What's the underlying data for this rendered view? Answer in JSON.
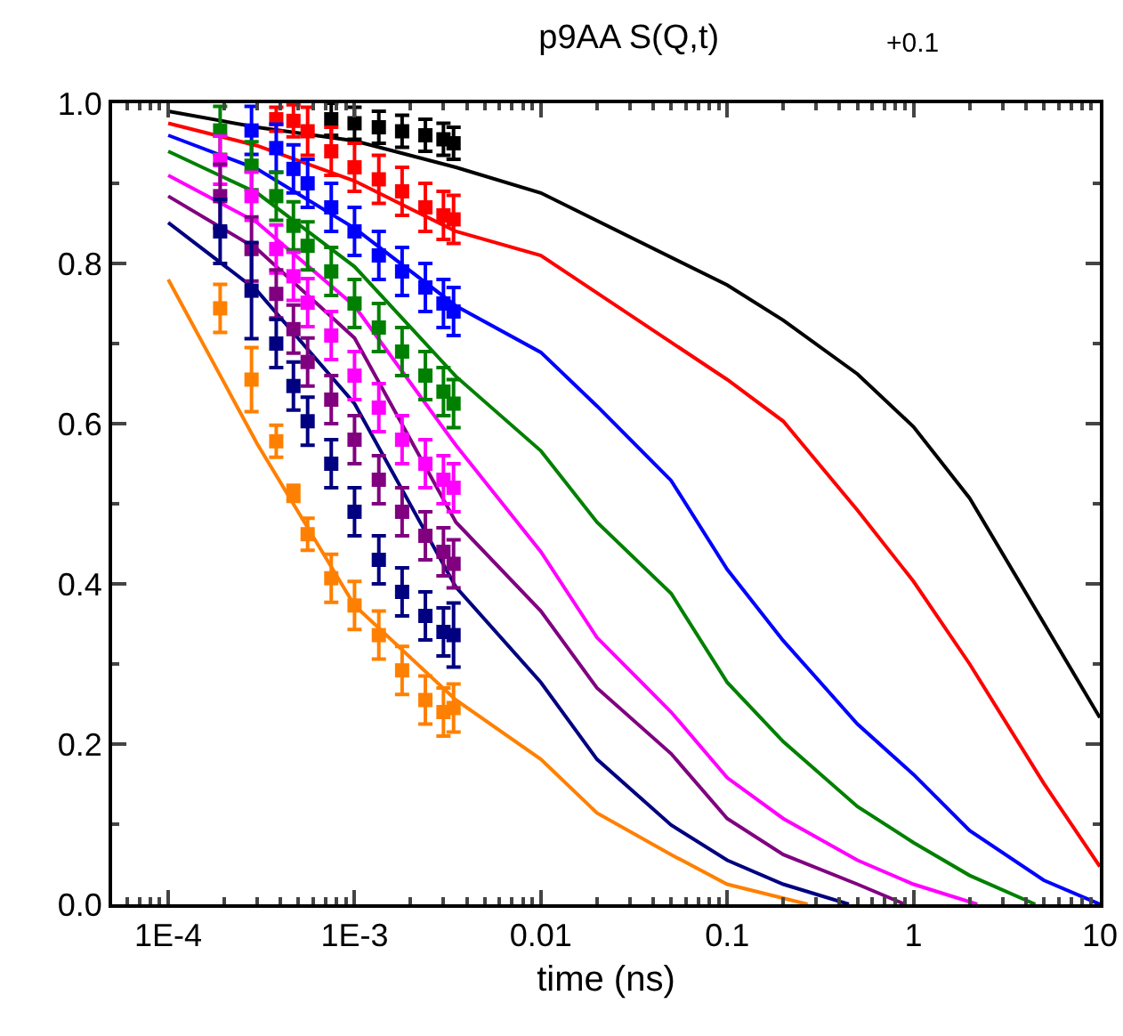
{
  "chart_data": {
    "type": "line",
    "title": "p9AA S(Q,t)",
    "xlabel": "time (ns)",
    "annotations": [
      "+0.1"
    ],
    "log": "x",
    "grid": false,
    "xlim": [
      5e-05,
      10
    ],
    "xticks": [
      {
        "value": 0.0001,
        "label": "1E-4"
      },
      {
        "value": 0.001,
        "label": "1E-3"
      },
      0.01,
      0.1,
      1,
      10
    ],
    "ylim": [
      0,
      1
    ],
    "yticks": [
      {
        "value": 0,
        "label": "0.0"
      },
      0.2,
      0.4,
      0.6,
      0.8,
      {
        "value": 1,
        "label": "1.0"
      }
    ],
    "series": [
      {
        "color": "#000000",
        "x": [
          0.0001,
          0.0003,
          0.001,
          0.0035,
          0.01,
          0.1,
          0.2,
          0.5,
          1,
          2,
          5,
          10
        ],
        "values": [
          0.99,
          0.97,
          0.953,
          0.92,
          0.888,
          0.773,
          0.729,
          0.662,
          0.596,
          0.507,
          0.351,
          0.233
        ]
      },
      {
        "color": "#ff0000",
        "x": [
          0.0001,
          0.0003,
          0.001,
          0.0035,
          0.01,
          0.03,
          0.1,
          0.2,
          0.5,
          1,
          2,
          5,
          10
        ],
        "values": [
          0.975,
          0.947,
          0.903,
          0.84,
          0.81,
          0.736,
          0.655,
          0.603,
          0.492,
          0.403,
          0.3,
          0.151,
          0.047
        ]
      },
      {
        "color": "#0000ff",
        "x": [
          0.0001,
          0.0003,
          0.001,
          0.0035,
          0.01,
          0.02,
          0.05,
          0.1,
          0.2,
          0.5,
          1,
          2,
          5,
          10
        ],
        "values": [
          0.96,
          0.918,
          0.844,
          0.747,
          0.689,
          0.622,
          0.529,
          0.418,
          0.329,
          0.225,
          0.162,
          0.092,
          0.03,
          0
        ]
      },
      {
        "color": "#008000",
        "x": [
          0.0001,
          0.0003,
          0.001,
          0.0035,
          0.01,
          0.02,
          0.05,
          0.1,
          0.2,
          0.5,
          1,
          2,
          4.5
        ],
        "values": [
          0.94,
          0.888,
          0.796,
          0.659,
          0.566,
          0.477,
          0.388,
          0.277,
          0.203,
          0.122,
          0.077,
          0.036,
          0
        ]
      },
      {
        "color": "#ff00ff",
        "x": [
          0.0001,
          0.0003,
          0.001,
          0.0035,
          0.01,
          0.02,
          0.05,
          0.1,
          0.2,
          0.5,
          1,
          2.2
        ],
        "values": [
          0.91,
          0.851,
          0.747,
          0.573,
          0.44,
          0.333,
          0.24,
          0.158,
          0.107,
          0.055,
          0.025,
          0
        ]
      },
      {
        "color": "#800080",
        "x": [
          0.0001,
          0.0003,
          0.001,
          0.0035,
          0.01,
          0.02,
          0.05,
          0.1,
          0.2,
          0.5,
          0.9
        ],
        "values": [
          0.884,
          0.818,
          0.707,
          0.477,
          0.366,
          0.27,
          0.188,
          0.107,
          0.062,
          0.025,
          0
        ]
      },
      {
        "color": "#000080",
        "x": [
          0.0001,
          0.0003,
          0.001,
          0.0035,
          0.01,
          0.02,
          0.05,
          0.1,
          0.2,
          0.45
        ],
        "values": [
          0.851,
          0.766,
          0.625,
          0.396,
          0.277,
          0.181,
          0.099,
          0.055,
          0.025,
          0
        ]
      },
      {
        "color": "#ff8000",
        "x": [
          0.0001,
          0.0003,
          0.001,
          0.0035,
          0.01,
          0.02,
          0.05,
          0.1,
          0.27
        ],
        "values": [
          0.78,
          0.575,
          0.373,
          0.255,
          0.181,
          0.114,
          0.062,
          0.025,
          0
        ]
      },
      {
        "type": "scatter",
        "marker": "square",
        "color": "#000000",
        "x": [
          0.00075,
          0.001,
          0.00135,
          0.0018,
          0.0024,
          0.003,
          0.0034
        ],
        "values": [
          0.98,
          0.975,
          0.97,
          0.965,
          0.96,
          0.955,
          0.95
        ],
        "errors": [
          0.02,
          0.02,
          0.02,
          0.02,
          0.02,
          0.02,
          0.02
        ]
      },
      {
        "type": "scatter",
        "marker": "square",
        "color": "#ff0000",
        "x": [
          0.00038,
          0.00047,
          0.00056,
          0.00075,
          0.001,
          0.00135,
          0.0018,
          0.0024,
          0.003,
          0.0034
        ],
        "values": [
          0.98,
          0.978,
          0.965,
          0.94,
          0.92,
          0.905,
          0.89,
          0.87,
          0.86,
          0.855
        ],
        "errors": [
          0.015,
          0.02,
          0.03,
          0.03,
          0.03,
          0.03,
          0.03,
          0.03,
          0.03,
          0.03
        ]
      },
      {
        "type": "scatter",
        "marker": "square",
        "color": "#0000ff",
        "x": [
          0.00028,
          0.00038,
          0.00047,
          0.00056,
          0.00075,
          0.001,
          0.00135,
          0.0018,
          0.0024,
          0.003,
          0.0034
        ],
        "values": [
          0.966,
          0.944,
          0.918,
          0.9,
          0.87,
          0.84,
          0.81,
          0.79,
          0.77,
          0.75,
          0.74
        ],
        "errors": [
          0.03,
          0.03,
          0.03,
          0.03,
          0.03,
          0.03,
          0.03,
          0.03,
          0.03,
          0.03,
          0.03
        ]
      },
      {
        "type": "scatter",
        "marker": "square",
        "color": "#008000",
        "x": [
          0.00019,
          0.00028,
          0.00038,
          0.00047,
          0.00056,
          0.00075,
          0.001,
          0.00135,
          0.0018,
          0.0024,
          0.003,
          0.0034
        ],
        "values": [
          0.966,
          0.922,
          0.884,
          0.847,
          0.822,
          0.79,
          0.75,
          0.72,
          0.69,
          0.66,
          0.64,
          0.625
        ],
        "errors": [
          0.03,
          0.03,
          0.03,
          0.03,
          0.03,
          0.03,
          0.03,
          0.03,
          0.03,
          0.03,
          0.03,
          0.03
        ]
      },
      {
        "type": "scatter",
        "marker": "square",
        "color": "#ff00ff",
        "x": [
          0.00019,
          0.00028,
          0.00038,
          0.00047,
          0.00056,
          0.00075,
          0.001,
          0.00135,
          0.0018,
          0.0024,
          0.003,
          0.0034
        ],
        "values": [
          0.929,
          0.884,
          0.818,
          0.784,
          0.751,
          0.71,
          0.66,
          0.62,
          0.58,
          0.55,
          0.53,
          0.52
        ],
        "errors": [
          0.03,
          0.03,
          0.03,
          0.03,
          0.03,
          0.03,
          0.03,
          0.03,
          0.03,
          0.03,
          0.03,
          0.03
        ]
      },
      {
        "type": "scatter",
        "marker": "square",
        "color": "#800080",
        "x": [
          0.00019,
          0.00028,
          0.00038,
          0.00047,
          0.00056,
          0.00075,
          0.001,
          0.00135,
          0.0018,
          0.0024,
          0.003,
          0.0034
        ],
        "values": [
          0.884,
          0.818,
          0.762,
          0.718,
          0.677,
          0.63,
          0.58,
          0.53,
          0.49,
          0.46,
          0.44,
          0.425
        ],
        "errors": [
          0.04,
          0.04,
          0.03,
          0.03,
          0.03,
          0.03,
          0.03,
          0.03,
          0.03,
          0.03,
          0.03,
          0.03
        ]
      },
      {
        "type": "scatter",
        "marker": "square",
        "color": "#000080",
        "x": [
          0.00019,
          0.00028,
          0.00038,
          0.00047,
          0.00056,
          0.00075,
          0.001,
          0.00135,
          0.0018,
          0.0024,
          0.003,
          0.0034
        ],
        "values": [
          0.84,
          0.766,
          0.7,
          0.647,
          0.603,
          0.55,
          0.49,
          0.43,
          0.39,
          0.36,
          0.34,
          0.336
        ],
        "errors": [
          0.04,
          0.06,
          0.03,
          0.03,
          0.03,
          0.03,
          0.03,
          0.03,
          0.03,
          0.03,
          0.03,
          0.04
        ]
      },
      {
        "type": "scatter",
        "marker": "square",
        "color": "#ff8000",
        "x": [
          0.00019,
          0.00028,
          0.00038,
          0.00047,
          0.00056,
          0.00075,
          0.001,
          0.00135,
          0.0018,
          0.0024,
          0.003,
          0.0034
        ],
        "values": [
          0.744,
          0.655,
          0.578,
          0.513,
          0.462,
          0.407,
          0.373,
          0.336,
          0.292,
          0.255,
          0.24,
          0.245
        ],
        "errors": [
          0.03,
          0.04,
          0.02,
          0.01,
          0.02,
          0.03,
          0.03,
          0.03,
          0.03,
          0.03,
          0.03,
          0.03
        ]
      }
    ]
  }
}
